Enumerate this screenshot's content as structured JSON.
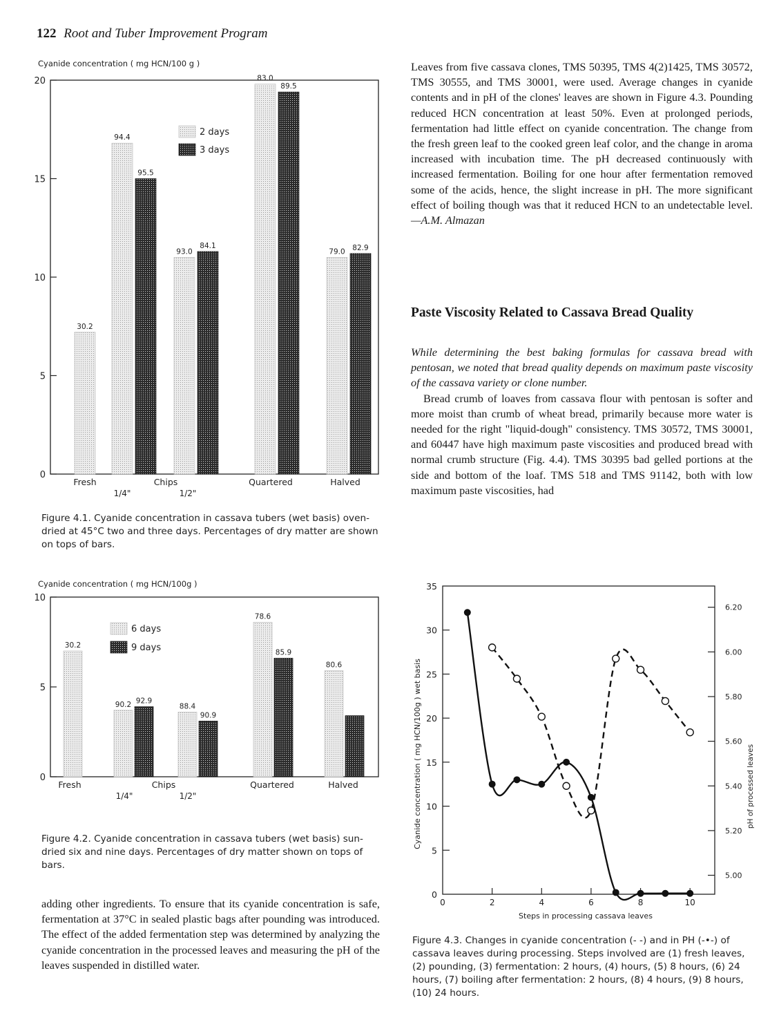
{
  "header": {
    "page_number": "122",
    "title": "Root and Tuber Improvement Program"
  },
  "right_column": {
    "p1": "Leaves from five cassava clones, TMS 50395, TMS 4(2)1425, TMS 30572, TMS 30555, and TMS 30001, were used. Average changes in cyanide contents and in pH of the clones' leaves are shown in Figure 4.3. Pounding reduced HCN concentration at least 50%. Even at prolonged periods, fermentation had little effect on cyanide concentration. The change from the fresh green leaf to the cooked green leaf color, and the change in aroma increased with incubation time. The pH decreased continuously with increased fermentation. Boiling for one hour after fermentation removed some of the acids, hence, the slight increase in pH. The more significant effect of boiling though was that it reduced HCN to an undetectable level.",
    "p1_author": "—A.M. Almazan",
    "section_title": "Paste Viscosity Related to Cassava Bread Quality",
    "p2": "While determining the best baking formulas for cassava bread with pentosan, we noted that bread quality depends on maximum paste viscosity of the cassava variety or clone number.",
    "p3": "Bread crumb of loaves from cassava flour with pentosan is softer and more moist than crumb of wheat bread, primarily because more water is needed for the right \"liquid-dough\" consistency. TMS 30572, TMS 30001, and 60447 have high maximum paste viscosities and produced bread with normal crumb structure (Fig. 4.4). TMS 30395 bad gelled portions at the side and bottom of the loaf. TMS 518 and TMS 91142, both with low maximum paste viscosities, had"
  },
  "left_column": {
    "p_bottom": "adding other ingredients. To ensure that its cyanide concentration is safe, fermentation at 37°C in sealed plastic bags after pounding was introduced. The effect of the added fermentation step was determined by analyzing the cyanide concentration in the processed leaves and measuring the pH of the leaves suspended in distilled water."
  },
  "figures": {
    "fig1_caption": "Figure 4.1. Cyanide concentration in cassava tubers (wet basis) oven-dried at 45°C two and three days. Percentages of dry matter are shown on tops of bars.",
    "fig2_caption": "Figure 4.2. Cyanide concentration in cassava tubers (wet basis) sun-dried six and nine days. Percentages of dry matter shown on tops of bars.",
    "fig3_caption": "Figure 4.3. Changes in cyanide concentration (- -) and in PH (-•-) of cassava leaves during processing. Steps involved are (1) fresh leaves, (2) pounding, (3) fermentation: 2 hours, (4) hours, (5) 8 hours, (6) 24 hours, (7) boiling after fermentation: 2 hours, (8) 4 hours, (9) 8 hours, (10) 24 hours."
  },
  "chart_data": [
    {
      "type": "bar",
      "ylabel": "Cyanide concentration ( mg HCN/100 g )",
      "ylim": [
        0,
        20
      ],
      "yticks": [
        "0",
        "5",
        "10",
        "15",
        "20"
      ],
      "groups": [
        {
          "label": "Fresh",
          "sublabel": ""
        },
        {
          "label": "Chips",
          "sublabel": "1/4\""
        },
        {
          "label": "",
          "sublabel": "1/2\""
        },
        {
          "label": "Quartered",
          "sublabel": ""
        },
        {
          "label": "Halved",
          "sublabel": ""
        }
      ],
      "series": [
        {
          "name": "2 days",
          "color": "#e2e2e2",
          "values": [
            7.2,
            16.8,
            11.0,
            19.8,
            11.0
          ],
          "labels": [
            "30.2",
            "94.4",
            "93.0",
            "83.0",
            "79.0"
          ]
        },
        {
          "name": "3 days",
          "color": "#3a3a3a",
          "values": [
            null,
            15.0,
            11.3,
            19.4,
            11.2
          ],
          "labels": [
            "",
            "95.5",
            "84.1",
            "89.5",
            "82.9"
          ]
        }
      ],
      "legend_position": "top-center"
    },
    {
      "type": "bar",
      "ylabel": "Cyanide concentration ( mg HCN/100g )",
      "ylim": [
        0,
        10
      ],
      "yticks": [
        "0",
        "5",
        "10"
      ],
      "groups": [
        {
          "label": "Fresh",
          "sublabel": ""
        },
        {
          "label": "Chips",
          "sublabel": "1/4\""
        },
        {
          "label": "",
          "sublabel": "1/2\""
        },
        {
          "label": "Quartered",
          "sublabel": ""
        },
        {
          "label": "Halved",
          "sublabel": ""
        }
      ],
      "series": [
        {
          "name": "6 days",
          "color": "#e2e2e2",
          "values": [
            7.0,
            3.7,
            3.6,
            8.6,
            5.9
          ],
          "labels": [
            "30.2",
            "90.2",
            "88.4",
            "78.6",
            "80.6"
          ]
        },
        {
          "name": "9 days",
          "color": "#3a3a3a",
          "values": [
            null,
            3.9,
            3.1,
            6.6,
            3.4
          ],
          "labels": [
            "",
            "92.9",
            "90.9",
            "85.9",
            ""
          ]
        }
      ],
      "legend_position": "top-left"
    },
    {
      "type": "line",
      "xlabel": "Steps in processing cassava leaves",
      "ylabel": "Cyanide concentration ( mg HCN/100g ) wet basis",
      "y2label": "pH of processed leaves",
      "xlim": [
        0,
        11
      ],
      "xticks": [
        "0",
        "2",
        "4",
        "6",
        "8",
        "10"
      ],
      "ylim": [
        0,
        35
      ],
      "yticks": [
        "0",
        "5",
        "10",
        "15",
        "20",
        "25",
        "30",
        "35"
      ],
      "y2lim": [
        4.915,
        6.295
      ],
      "y2ticks": [
        "5.00",
        "5.20",
        "5.40",
        "5.60",
        "5.80",
        "6.00",
        "6.20"
      ],
      "series": [
        {
          "name": "Cyanide concentration",
          "style": "solid-dots",
          "x": [
            1,
            2,
            3,
            4,
            5,
            6,
            7,
            8,
            9,
            10
          ],
          "y": [
            32,
            12.5,
            13,
            12.5,
            15,
            11,
            0.2,
            0.1,
            0.1,
            0.1
          ]
        },
        {
          "name": "pH",
          "style": "dashed-open",
          "x": [
            2,
            3,
            4,
            5,
            6,
            7,
            8,
            9,
            10
          ],
          "y": [
            6.02,
            5.88,
            5.71,
            5.4,
            5.29,
            5.97,
            5.92,
            5.78,
            5.64
          ]
        }
      ]
    }
  ]
}
